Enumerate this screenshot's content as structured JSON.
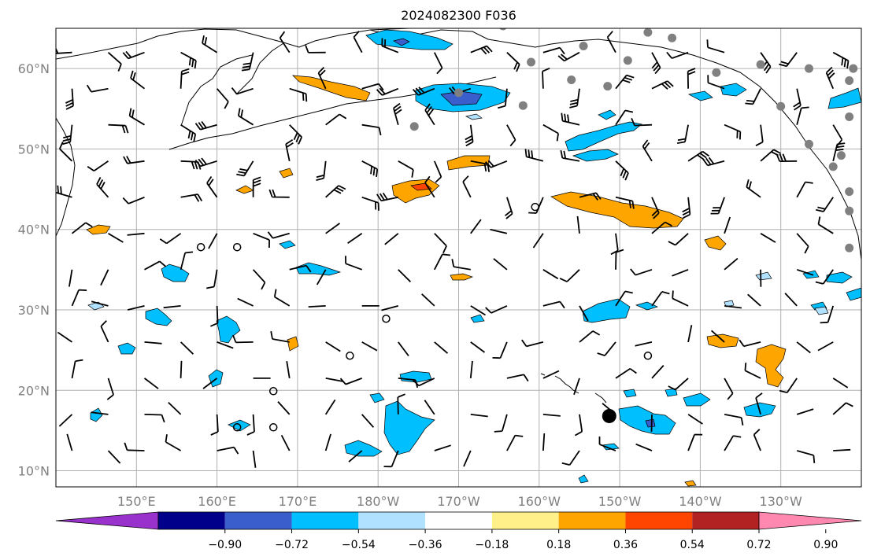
{
  "title": "2024082300 F036",
  "map": {
    "lat_labels": [
      {
        "text": "60°N",
        "lat": 60
      },
      {
        "text": "50°N",
        "lat": 50
      },
      {
        "text": "40°N",
        "lat": 40
      },
      {
        "text": "30°N",
        "lat": 30
      },
      {
        "text": "20°N",
        "lat": 20
      },
      {
        "text": "10°N",
        "lat": 10
      }
    ],
    "lon_labels": [
      {
        "text": "150°E",
        "lon": 150
      },
      {
        "text": "160°E",
        "lon": 160
      },
      {
        "text": "170°E",
        "lon": 170
      },
      {
        "text": "180°W",
        "lon": 180
      },
      {
        "text": "170°W",
        "lon": 190
      },
      {
        "text": "160°W",
        "lon": 200
      },
      {
        "text": "150°W",
        "lon": 210
      },
      {
        "text": "140°W",
        "lon": 220
      },
      {
        "text": "130°W",
        "lon": 230
      }
    ],
    "lon_range": [
      140,
      240
    ],
    "lat_range": [
      8,
      65
    ],
    "storm_marker": {
      "lon": 208.7,
      "lat": 16.8
    },
    "station_points": [
      {
        "lon": 195.5,
        "lat": 65.3
      },
      {
        "lon": 213.5,
        "lat": 64.5
      },
      {
        "lon": 216.5,
        "lat": 63.8
      },
      {
        "lon": 205.5,
        "lat": 62.8
      },
      {
        "lon": 199.0,
        "lat": 60.8
      },
      {
        "lon": 211.0,
        "lat": 61.0
      },
      {
        "lon": 227.5,
        "lat": 60.5
      },
      {
        "lon": 222.0,
        "lat": 59.5
      },
      {
        "lon": 233.5,
        "lat": 60.0
      },
      {
        "lon": 239.0,
        "lat": 60.0
      },
      {
        "lon": 204.0,
        "lat": 58.6
      },
      {
        "lon": 208.5,
        "lat": 57.8
      },
      {
        "lon": 238.5,
        "lat": 58.5
      },
      {
        "lon": 198.0,
        "lat": 55.4
      },
      {
        "lon": 230.0,
        "lat": 55.3
      },
      {
        "lon": 238.5,
        "lat": 54.0
      },
      {
        "lon": 184.5,
        "lat": 52.8
      },
      {
        "lon": 233.5,
        "lat": 50.6
      },
      {
        "lon": 237.5,
        "lat": 49.2
      },
      {
        "lon": 236.5,
        "lat": 47.8
      },
      {
        "lon": 238.5,
        "lat": 44.7
      },
      {
        "lon": 238.5,
        "lat": 42.3
      },
      {
        "lon": 238.5,
        "lat": 37.7
      },
      {
        "lon": 190.0,
        "lat": 57.0
      }
    ],
    "calm_circles": [
      {
        "lon": 158.0,
        "lat": 37.8
      },
      {
        "lon": 162.5,
        "lat": 37.8
      },
      {
        "lon": 199.5,
        "lat": 42.8
      },
      {
        "lon": 181.0,
        "lat": 28.9
      },
      {
        "lon": 176.5,
        "lat": 24.3
      },
      {
        "lon": 213.5,
        "lat": 24.3
      },
      {
        "lon": 167.0,
        "lat": 19.9
      },
      {
        "lon": 162.5,
        "lat": 15.4
      },
      {
        "lon": 167.0,
        "lat": 15.4
      }
    ],
    "legend_colors": {
      "accent_blue": "#00bfff",
      "accent_orange": "#ffa500",
      "accent_red": "#ff4500"
    }
  },
  "colorbar": {
    "colors": [
      "#9932cc",
      "#00008b",
      "#3a5fcd",
      "#00bfff",
      "#b0e2ff",
      "#ffffff",
      "#fff08a",
      "#ffa500",
      "#ff4500",
      "#b22222",
      "#ff88b0"
    ],
    "ticks": [
      "−0.90",
      "−0.72",
      "−0.54",
      "−0.36",
      "−0.18",
      "0.18",
      "0.36",
      "0.54",
      "0.72",
      "0.90"
    ]
  }
}
